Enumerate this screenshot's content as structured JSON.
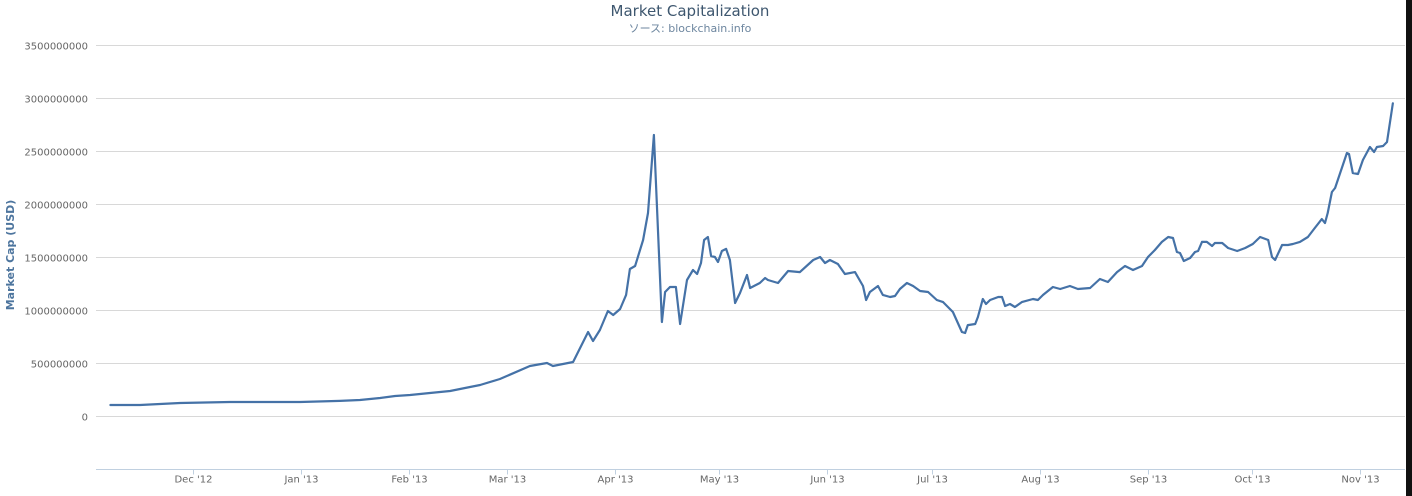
{
  "chart_data": {
    "type": "line",
    "title": "Market Capitalization",
    "subtitle": "ソース: blockchain.info",
    "ylabel": "Market Cap (USD)",
    "xlabel": "",
    "x_unit": "days since 2012-12-01",
    "value_unit": "USD millions",
    "ylim": [
      -500000000,
      3500000000
    ],
    "yticks": [
      "3500000000",
      "3000000000",
      "2500000000",
      "2000000000",
      "1500000000",
      "1000000000",
      "500000000",
      "0"
    ],
    "ytick_values": [
      3500000000,
      3000000000,
      2500000000,
      2000000000,
      1500000000,
      1000000000,
      500000000,
      0
    ],
    "xticks": [
      {
        "label": "Dec '12",
        "day": 0
      },
      {
        "label": "Jan '13",
        "day": 31
      },
      {
        "label": "Feb '13",
        "day": 62
      },
      {
        "label": "Mar '13",
        "day": 90
      },
      {
        "label": "Apr '13",
        "day": 121
      },
      {
        "label": "May '13",
        "day": 151
      },
      {
        "label": "Jun '13",
        "day": 182
      },
      {
        "label": "Jul '13",
        "day": 212
      },
      {
        "label": "Aug '13",
        "day": 243
      },
      {
        "label": "Sep '13",
        "day": 274
      },
      {
        "label": "Oct '13",
        "day": 304
      },
      {
        "label": "Nov '13",
        "day": 335
      }
    ],
    "grid": true,
    "legend": "none",
    "series": [
      {
        "name": "Market Cap (USD)",
        "color": "#4572a7",
        "points": [
          [
            -23.8,
            104
          ],
          [
            -15.2,
            104
          ],
          [
            -3.7,
            123
          ],
          [
            10.6,
            132
          ],
          [
            30.7,
            132
          ],
          [
            42.2,
            142
          ],
          [
            47.9,
            151
          ],
          [
            53.7,
            170
          ],
          [
            58.0,
            189
          ],
          [
            62.3,
            198
          ],
          [
            68.0,
            217
          ],
          [
            73.8,
            236
          ],
          [
            79.5,
            274
          ],
          [
            82.4,
            292
          ],
          [
            88.1,
            349
          ],
          [
            96.7,
            472
          ],
          [
            101.6,
            500
          ],
          [
            103.3,
            472
          ],
          [
            109.1,
            509
          ],
          [
            113.4,
            792
          ],
          [
            114.8,
            708
          ],
          [
            116.8,
            811
          ],
          [
            119.1,
            991
          ],
          [
            120.6,
            953
          ],
          [
            122.6,
            1009
          ],
          [
            124.3,
            1142
          ],
          [
            125.4,
            1387
          ],
          [
            126.9,
            1415
          ],
          [
            129.2,
            1660
          ],
          [
            130.6,
            1915
          ],
          [
            132.3,
            2651
          ],
          [
            134.6,
            887
          ],
          [
            135.5,
            1170
          ],
          [
            136.9,
            1217
          ],
          [
            138.6,
            1217
          ],
          [
            139.8,
            868
          ],
          [
            141.8,
            1283
          ],
          [
            143.5,
            1377
          ],
          [
            144.7,
            1340
          ],
          [
            145.8,
            1443
          ],
          [
            146.7,
            1660
          ],
          [
            147.8,
            1689
          ],
          [
            148.7,
            1509
          ],
          [
            149.8,
            1500
          ],
          [
            150.7,
            1453
          ],
          [
            151.8,
            1557
          ],
          [
            153.0,
            1576
          ],
          [
            154.1,
            1472
          ],
          [
            155.6,
            1066
          ],
          [
            157.0,
            1160
          ],
          [
            159.0,
            1330
          ],
          [
            159.9,
            1208
          ],
          [
            162.7,
            1255
          ],
          [
            164.2,
            1302
          ],
          [
            165.0,
            1283
          ],
          [
            167.9,
            1255
          ],
          [
            170.8,
            1368
          ],
          [
            174.2,
            1358
          ],
          [
            178.0,
            1472
          ],
          [
            180.0,
            1500
          ],
          [
            181.4,
            1443
          ],
          [
            182.8,
            1472
          ],
          [
            185.1,
            1434
          ],
          [
            187.1,
            1340
          ],
          [
            190.0,
            1358
          ],
          [
            192.3,
            1226
          ],
          [
            193.2,
            1094
          ],
          [
            194.3,
            1170
          ],
          [
            196.6,
            1226
          ],
          [
            198.0,
            1142
          ],
          [
            200.1,
            1123
          ],
          [
            201.5,
            1132
          ],
          [
            202.9,
            1198
          ],
          [
            204.9,
            1255
          ],
          [
            206.7,
            1226
          ],
          [
            208.7,
            1179
          ],
          [
            211.0,
            1170
          ],
          [
            213.5,
            1094
          ],
          [
            215.3,
            1075
          ],
          [
            218.1,
            981
          ],
          [
            220.7,
            792
          ],
          [
            221.6,
            783
          ],
          [
            222.4,
            858
          ],
          [
            224.5,
            868
          ],
          [
            225.3,
            934
          ],
          [
            226.7,
            1104
          ],
          [
            227.6,
            1057
          ],
          [
            228.8,
            1094
          ],
          [
            231.1,
            1123
          ],
          [
            232.2,
            1123
          ],
          [
            233.1,
            1038
          ],
          [
            234.5,
            1057
          ],
          [
            235.9,
            1028
          ],
          [
            237.9,
            1075
          ],
          [
            241.1,
            1104
          ],
          [
            242.5,
            1094
          ],
          [
            244.0,
            1142
          ],
          [
            246.8,
            1217
          ],
          [
            248.9,
            1198
          ],
          [
            251.7,
            1226
          ],
          [
            254.0,
            1198
          ],
          [
            257.5,
            1208
          ],
          [
            260.3,
            1292
          ],
          [
            262.6,
            1264
          ],
          [
            265.2,
            1358
          ],
          [
            267.5,
            1415
          ],
          [
            269.8,
            1377
          ],
          [
            272.4,
            1415
          ],
          [
            274.1,
            1500
          ],
          [
            276.1,
            1566
          ],
          [
            278.1,
            1642
          ],
          [
            279.9,
            1689
          ],
          [
            281.3,
            1679
          ],
          [
            282.4,
            1547
          ],
          [
            283.3,
            1538
          ],
          [
            284.4,
            1462
          ],
          [
            286.2,
            1491
          ],
          [
            287.6,
            1547
          ],
          [
            288.5,
            1557
          ],
          [
            289.6,
            1642
          ],
          [
            291.0,
            1642
          ],
          [
            292.5,
            1604
          ],
          [
            293.3,
            1632
          ],
          [
            295.4,
            1632
          ],
          [
            297.1,
            1585
          ],
          [
            299.7,
            1557
          ],
          [
            302.0,
            1585
          ],
          [
            304.2,
            1623
          ],
          [
            306.3,
            1689
          ],
          [
            308.6,
            1660
          ],
          [
            309.7,
            1500
          ],
          [
            310.6,
            1472
          ],
          [
            312.6,
            1613
          ],
          [
            314.3,
            1613
          ],
          [
            315.7,
            1623
          ],
          [
            317.7,
            1642
          ],
          [
            320.0,
            1689
          ],
          [
            322.0,
            1774
          ],
          [
            324.0,
            1858
          ],
          [
            324.9,
            1821
          ],
          [
            325.7,
            1915
          ],
          [
            326.9,
            2113
          ],
          [
            327.8,
            2151
          ],
          [
            331.2,
            2481
          ],
          [
            331.8,
            2472
          ],
          [
            332.9,
            2292
          ],
          [
            334.4,
            2283
          ],
          [
            335.8,
            2415
          ],
          [
            337.8,
            2538
          ],
          [
            339.0,
            2491
          ],
          [
            339.8,
            2538
          ],
          [
            341.6,
            2547
          ],
          [
            342.7,
            2585
          ],
          [
            344.4,
            2953
          ]
        ]
      }
    ]
  }
}
